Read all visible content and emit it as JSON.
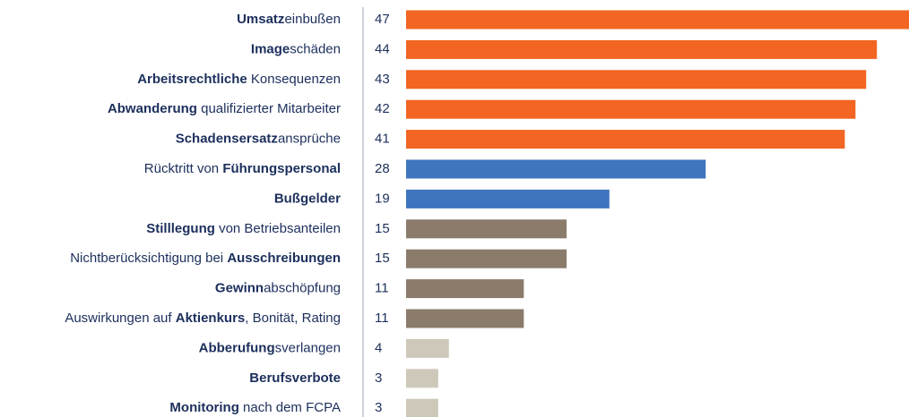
{
  "chart_data": {
    "type": "bar",
    "orientation": "horizontal",
    "categories": [
      [
        {
          "text": "Umsatz",
          "bold": true
        },
        {
          "text": "einbußen",
          "bold": false
        }
      ],
      [
        {
          "text": "Image",
          "bold": true
        },
        {
          "text": "schäden",
          "bold": false
        }
      ],
      [
        {
          "text": "Arbeitsrechtliche",
          "bold": true
        },
        {
          "text": " Konsequenzen",
          "bold": false
        }
      ],
      [
        {
          "text": "Abwanderung",
          "bold": true
        },
        {
          "text": " qualifizierter Mitarbeiter",
          "bold": false
        }
      ],
      [
        {
          "text": "Schadensersatz",
          "bold": true
        },
        {
          "text": "ansprüche",
          "bold": false
        }
      ],
      [
        {
          "text": "Rücktritt von ",
          "bold": false
        },
        {
          "text": "Führungspersonal",
          "bold": true
        }
      ],
      [
        {
          "text": "Bußgelder",
          "bold": true
        }
      ],
      [
        {
          "text": "Stilllegung",
          "bold": true
        },
        {
          "text": " von Betriebsanteilen",
          "bold": false
        }
      ],
      [
        {
          "text": "Nichtberücksichtigung bei ",
          "bold": false
        },
        {
          "text": "Ausschreibungen",
          "bold": true
        }
      ],
      [
        {
          "text": "Gewinn",
          "bold": true
        },
        {
          "text": "abschöpfung",
          "bold": false
        }
      ],
      [
        {
          "text": "Auswirkungen auf ",
          "bold": false
        },
        {
          "text": "Aktienkurs",
          "bold": true
        },
        {
          "text": ", Bonität, Rating",
          "bold": false
        }
      ],
      [
        {
          "text": "Abberufung",
          "bold": true
        },
        {
          "text": "sverlangen",
          "bold": false
        }
      ],
      [
        {
          "text": "Berufsverbote",
          "bold": true
        }
      ],
      [
        {
          "text": "Monitoring",
          "bold": true
        },
        {
          "text": " nach dem FCPA",
          "bold": false
        }
      ]
    ],
    "values": [
      47,
      44,
      43,
      42,
      41,
      28,
      19,
      15,
      15,
      11,
      11,
      4,
      3,
      3
    ],
    "colors": [
      "#f26522",
      "#f26522",
      "#f26522",
      "#f26522",
      "#f26522",
      "#3f75bf",
      "#3f75bf",
      "#8a7b6b",
      "#8a7b6b",
      "#8a7b6b",
      "#8a7b6b",
      "#cdc8b9",
      "#cdc8b9",
      "#cdc8b9"
    ],
    "xlim": [
      0,
      47
    ]
  }
}
